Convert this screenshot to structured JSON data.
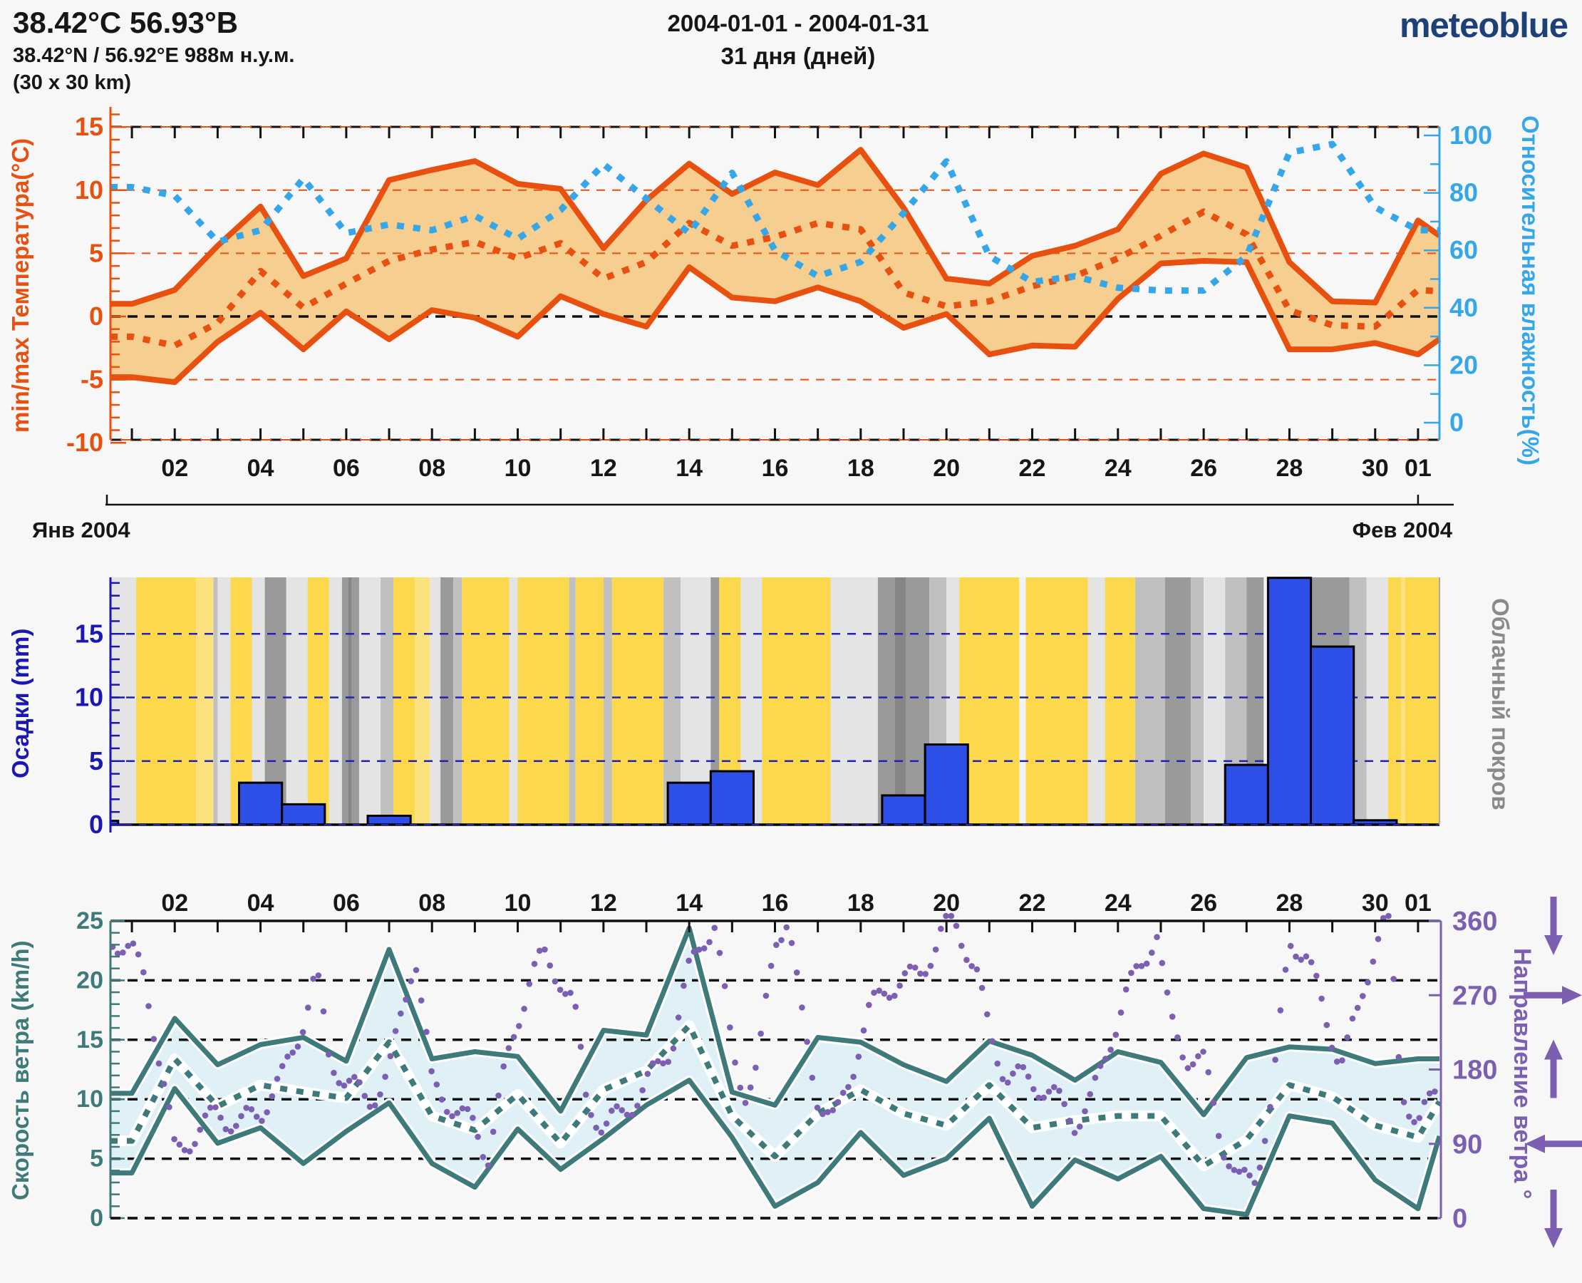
{
  "header": {
    "line1": "38.42°С 56.93°В",
    "line2": "38.42°N / 56.92°E   988м н.у.м.",
    "line3": "(30 x 30 km)",
    "center1": "2004-01-01 - 2004-01-31",
    "center2": "31 дня (дней)"
  },
  "logo": {
    "text": "meteoblue",
    "color": "#1d4077"
  },
  "months": {
    "left": "Янв 2004",
    "right": "Фев 2004"
  },
  "colors": {
    "temp": "#e8500f",
    "temp_band": "#f6cf90",
    "humidity": "#35a7e8",
    "precip_bar": "#2e4ee8",
    "precip_axis": "#1a18b4",
    "cloud_label": "#8a8a8a",
    "wind": "#3f7a7b",
    "wind_fill": "#dff0f7",
    "direction": "#7d5fb2",
    "grid": "#111111",
    "background": "#f7f7f7",
    "stripes": {
      "y": "#fbd84c",
      "ly": "#fce27f",
      "w": "#f3f3f3",
      "g1": "#e4e4e4",
      "g2": "#c0c0c0",
      "g3": "#9a9a9a",
      "g4": "#858585"
    }
  },
  "day_labels": [
    {
      "t": 2,
      "text": "02"
    },
    {
      "t": 4,
      "text": "04"
    },
    {
      "t": 6,
      "text": "06"
    },
    {
      "t": 8,
      "text": "08"
    },
    {
      "t": 10,
      "text": "10"
    },
    {
      "t": 12,
      "text": "12"
    },
    {
      "t": 14,
      "text": "14"
    },
    {
      "t": 16,
      "text": "16"
    },
    {
      "t": 18,
      "text": "18"
    },
    {
      "t": 20,
      "text": "20"
    },
    {
      "t": 22,
      "text": "22"
    },
    {
      "t": 24,
      "text": "24"
    },
    {
      "t": 26,
      "text": "26"
    },
    {
      "t": 28,
      "text": "28"
    },
    {
      "t": 30,
      "text": "30"
    },
    {
      "t": 31,
      "text": "01"
    }
  ],
  "chart_data": [
    {
      "type": "area",
      "id": "temperature",
      "title_left": "min/max Температура(°C)",
      "title_right": "Относительная влажность(%)",
      "ylim": [
        -10,
        15.3
      ],
      "yticks": [
        -10,
        -5,
        0,
        5,
        10,
        15
      ],
      "grid_orange": [
        -5,
        5,
        10
      ],
      "grid_black": [
        0
      ],
      "ylim_right": [
        0,
        100
      ],
      "yticks_right": [
        0,
        20,
        40,
        60,
        80,
        100
      ],
      "days": 31,
      "series": [
        {
          "name": "t_max",
          "values": [
            1.0,
            2.1,
            5.6,
            8.7,
            3.2,
            4.6,
            10.8,
            11.6,
            12.3,
            10.5,
            10.1,
            5.4,
            9.2,
            12.1,
            9.7,
            11.4,
            10.4,
            13.2,
            8.6,
            3.0,
            2.6,
            4.8,
            5.6,
            6.9,
            11.3,
            12.9,
            11.8,
            4.3,
            1.2,
            1.1,
            7.6
          ],
          "end": 6.4
        },
        {
          "name": "t_min",
          "values": [
            -4.8,
            -5.2,
            -2.0,
            0.3,
            -2.6,
            0.4,
            -1.8,
            0.5,
            -0.1,
            -1.6,
            1.6,
            0.2,
            -0.8,
            3.9,
            1.5,
            1.2,
            2.3,
            1.2,
            -0.9,
            0.2,
            -3.0,
            -2.3,
            -2.4,
            1.4,
            4.2,
            4.4,
            4.3,
            -2.6,
            -2.6,
            -2.1,
            -3.0
          ],
          "end": -1.8
        },
        {
          "name": "t_mean",
          "values": [
            -1.6,
            -2.3,
            -0.5,
            3.6,
            0.7,
            2.6,
            4.4,
            5.3,
            5.9,
            4.6,
            5.8,
            3.0,
            4.3,
            7.4,
            5.6,
            6.3,
            7.4,
            6.9,
            1.9,
            0.8,
            1.2,
            2.4,
            3.2,
            4.6,
            6.4,
            8.3,
            6.5,
            0.5,
            -0.7,
            -0.8,
            2.1
          ],
          "end": 2.0
        },
        {
          "name": "humidity",
          "values": [
            82,
            79,
            63,
            67,
            85,
            66,
            69,
            67,
            72,
            64,
            74,
            90,
            78,
            66,
            87,
            60,
            51,
            56,
            73,
            91,
            58,
            49,
            51,
            47,
            46,
            46,
            58,
            94,
            97,
            75,
            67
          ],
          "end": 67
        }
      ]
    },
    {
      "type": "bar",
      "id": "precipitation",
      "title_left": "Осадки (mm)",
      "title_right": "Облачный покров",
      "ylim": [
        0,
        19.5
      ],
      "yticks": [
        0,
        5,
        10,
        15
      ],
      "bars": [
        {
          "day": 1,
          "mm": 0.3,
          "wf": 0.18
        },
        {
          "day": 4,
          "mm": 3.3
        },
        {
          "day": 5,
          "mm": 1.6
        },
        {
          "day": 7,
          "mm": 0.7
        },
        {
          "day": 14,
          "mm": 3.3
        },
        {
          "day": 15,
          "mm": 4.2
        },
        {
          "day": 19,
          "mm": 2.3
        },
        {
          "day": 20,
          "mm": 6.3
        },
        {
          "day": 27,
          "mm": 4.7
        },
        {
          "day": 28,
          "mm": 19.4
        },
        {
          "day": 29,
          "mm": 14.0
        },
        {
          "day": 30,
          "mm": 0.35
        }
      ],
      "cloud_stripes": [
        [
          0,
          0.6,
          "g1"
        ],
        [
          0.6,
          2.0,
          "y"
        ],
        [
          2.0,
          2.4,
          "ly"
        ],
        [
          2.4,
          2.5,
          "g2"
        ],
        [
          2.5,
          2.8,
          "g1"
        ],
        [
          2.8,
          3.3,
          "y"
        ],
        [
          3.3,
          3.6,
          "g1"
        ],
        [
          3.6,
          4.1,
          "g3"
        ],
        [
          4.1,
          4.6,
          "g1"
        ],
        [
          4.6,
          5.1,
          "y"
        ],
        [
          5.1,
          5.4,
          "g1"
        ],
        [
          5.4,
          5.8,
          "g3"
        ],
        [
          5.55,
          5.62,
          "g4"
        ],
        [
          5.8,
          6.3,
          "g1"
        ],
        [
          6.3,
          6.6,
          "g2"
        ],
        [
          6.6,
          7.1,
          "y"
        ],
        [
          7.1,
          7.45,
          "ly"
        ],
        [
          7.45,
          7.7,
          "g1"
        ],
        [
          7.7,
          8.0,
          "g3"
        ],
        [
          8.0,
          8.2,
          "g2"
        ],
        [
          8.2,
          9.3,
          "y"
        ],
        [
          9.3,
          9.5,
          "g1"
        ],
        [
          9.5,
          10.7,
          "y"
        ],
        [
          10.7,
          10.85,
          "g2"
        ],
        [
          10.85,
          11.5,
          "y"
        ],
        [
          11.5,
          11.7,
          "g2"
        ],
        [
          11.7,
          12.9,
          "y"
        ],
        [
          12.9,
          13.3,
          "g2"
        ],
        [
          13.3,
          14.0,
          "g1"
        ],
        [
          14.0,
          14.2,
          "g3"
        ],
        [
          14.2,
          14.7,
          "y"
        ],
        [
          14.7,
          15.2,
          "g1"
        ],
        [
          15.2,
          16.8,
          "y"
        ],
        [
          16.8,
          17.9,
          "g1"
        ],
        [
          17.9,
          19.1,
          "g3"
        ],
        [
          18.3,
          18.55,
          "g4"
        ],
        [
          19.1,
          19.5,
          "g2"
        ],
        [
          19.5,
          19.8,
          "g1"
        ],
        [
          19.8,
          21.2,
          "y"
        ],
        [
          21.2,
          21.35,
          "w"
        ],
        [
          21.35,
          22.8,
          "y"
        ],
        [
          22.8,
          23.2,
          "g1"
        ],
        [
          23.2,
          23.9,
          "y"
        ],
        [
          23.9,
          24.6,
          "g2"
        ],
        [
          24.6,
          25.2,
          "g3"
        ],
        [
          25.2,
          25.5,
          "g2"
        ],
        [
          25.5,
          26.0,
          "g1"
        ],
        [
          26.0,
          26.5,
          "g2"
        ],
        [
          26.5,
          28.9,
          "g3"
        ],
        [
          26.9,
          27.05,
          "w"
        ],
        [
          28.9,
          29.3,
          "g2"
        ],
        [
          29.3,
          29.8,
          "g1"
        ],
        [
          29.8,
          31,
          "y"
        ],
        [
          30.1,
          30.2,
          "ly"
        ]
      ]
    },
    {
      "type": "band_scatter",
      "id": "wind",
      "title_left": "Скорость ветра (km/h)",
      "title_right": "Направление ветра °",
      "ylim": [
        0,
        25
      ],
      "yticks": [
        0,
        5,
        10,
        15,
        20,
        25
      ],
      "grid_black": [
        0,
        5,
        10,
        15,
        20
      ],
      "ylim_right": [
        0,
        360
      ],
      "yticks_right": [
        0,
        90,
        180,
        270,
        360
      ],
      "series": [
        {
          "name": "wind_max",
          "values": [
            10.5,
            16.8,
            12.9,
            14.6,
            15.2,
            13.2,
            22.6,
            13.4,
            14.0,
            13.6,
            9.0,
            15.8,
            15.4,
            24.4,
            10.6,
            9.5,
            15.2,
            14.8,
            12.9,
            11.5,
            14.9,
            13.7,
            11.6,
            14.0,
            13.1,
            8.7,
            13.5,
            14.4,
            14.2,
            13.0,
            13.4
          ],
          "end": 13.4
        },
        {
          "name": "wind_min",
          "values": [
            3.8,
            10.9,
            6.3,
            7.6,
            4.6,
            7.3,
            9.7,
            4.6,
            2.6,
            7.5,
            4.1,
            6.7,
            9.5,
            11.6,
            6.8,
            1.0,
            3.0,
            7.2,
            3.6,
            5.0,
            8.4,
            1.0,
            4.9,
            3.3,
            5.2,
            0.8,
            0.3,
            8.6,
            8.0,
            3.2,
            0.8
          ],
          "end": 6.9
        },
        {
          "name": "wind_mean",
          "values": [
            6.5,
            13.4,
            9.4,
            11.2,
            10.6,
            10.1,
            14.8,
            8.6,
            7.4,
            10.4,
            6.3,
            10.8,
            12.4,
            16.2,
            8.6,
            5.2,
            8.8,
            10.8,
            8.8,
            7.8,
            11.2,
            7.6,
            8.2,
            8.6,
            8.6,
            4.4,
            6.6,
            11.2,
            10.2,
            7.8,
            6.8
          ],
          "end": 9.8
        }
      ],
      "direction_waypoints": [
        [
          0.6,
          345
        ],
        [
          1.0,
          330
        ],
        [
          1.3,
          295
        ],
        [
          1.6,
          200
        ],
        [
          2.0,
          70
        ],
        [
          2.5,
          105
        ],
        [
          3.0,
          140
        ],
        [
          3.5,
          108
        ],
        [
          4.0,
          120
        ],
        [
          4.5,
          170
        ],
        [
          5.0,
          250
        ],
        [
          5.3,
          300
        ],
        [
          5.6,
          190
        ],
        [
          6.0,
          155
        ],
        [
          6.5,
          143
        ],
        [
          7.0,
          185
        ],
        [
          7.3,
          255
        ],
        [
          7.6,
          320
        ],
        [
          8.0,
          150
        ],
        [
          8.5,
          135
        ],
        [
          9.0,
          120
        ],
        [
          9.3,
          80
        ],
        [
          9.6,
          150
        ],
        [
          10.0,
          230
        ],
        [
          10.3,
          290
        ],
        [
          10.6,
          318
        ],
        [
          11.0,
          300
        ],
        [
          11.3,
          268
        ],
        [
          11.6,
          140
        ],
        [
          12.0,
          100
        ],
        [
          12.4,
          120
        ],
        [
          12.8,
          155
        ],
        [
          13.2,
          185
        ],
        [
          13.6,
          210
        ],
        [
          14.0,
          290
        ],
        [
          14.3,
          330
        ],
        [
          14.6,
          358
        ],
        [
          15.0,
          210
        ],
        [
          15.3,
          160
        ],
        [
          15.6,
          180
        ],
        [
          16.0,
          330
        ],
        [
          16.3,
          356
        ],
        [
          16.6,
          250
        ],
        [
          17.0,
          155
        ],
        [
          17.4,
          120
        ],
        [
          17.8,
          175
        ],
        [
          18.2,
          240
        ],
        [
          18.6,
          280
        ],
        [
          19.0,
          295
        ],
        [
          19.4,
          305
        ],
        [
          19.8,
          330
        ],
        [
          20.1,
          358
        ],
        [
          20.4,
          330
        ],
        [
          20.7,
          300
        ],
        [
          21.0,
          230
        ],
        [
          21.4,
          180
        ],
        [
          21.8,
          165
        ],
        [
          22.2,
          150
        ],
        [
          22.6,
          140
        ],
        [
          23.0,
          125
        ],
        [
          23.4,
          150
        ],
        [
          23.8,
          210
        ],
        [
          24.2,
          260
        ],
        [
          24.6,
          310
        ],
        [
          24.9,
          355
        ],
        [
          25.2,
          250
        ],
        [
          25.6,
          200
        ],
        [
          26.0,
          180
        ],
        [
          26.4,
          90
        ],
        [
          26.8,
          45
        ],
        [
          27.2,
          60
        ],
        [
          27.6,
          150
        ],
        [
          28.0,
          330
        ],
        [
          28.4,
          310
        ],
        [
          28.8,
          250
        ],
        [
          29.2,
          200
        ],
        [
          29.6,
          250
        ],
        [
          30.0,
          330
        ],
        [
          30.3,
          358
        ],
        [
          30.6,
          155
        ],
        [
          31.0,
          120
        ],
        [
          31.4,
          160
        ]
      ],
      "arrow_glyphs": [
        {
          "at": 360,
          "dir": "down"
        },
        {
          "at": 270,
          "dir": "right"
        },
        {
          "at": 180,
          "dir": "up"
        },
        {
          "at": 90,
          "dir": "left"
        },
        {
          "at": 0,
          "dir": "down"
        }
      ]
    }
  ]
}
